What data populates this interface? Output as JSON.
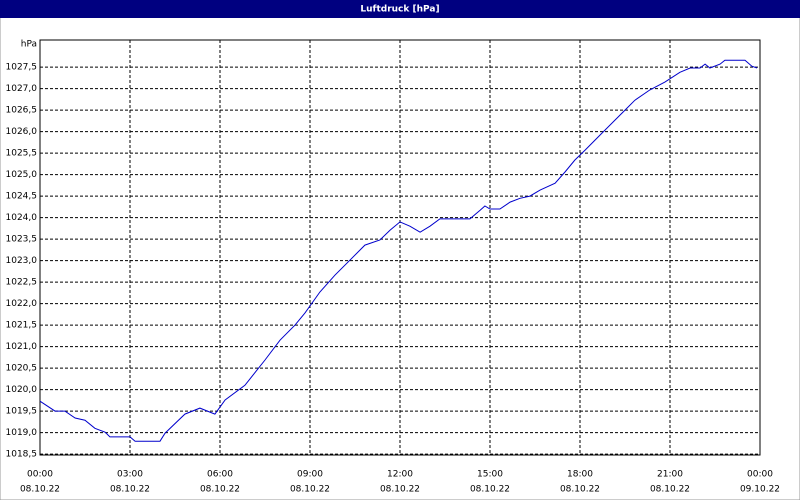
{
  "chart_data": {
    "type": "line",
    "title": "Luftdruck [hPa]",
    "y_unit": "hPa",
    "x": [
      0,
      0.5,
      0.83,
      1.17,
      1.5,
      1.83,
      2.17,
      2.33,
      3,
      3.17,
      4,
      4.17,
      4.83,
      5.33,
      5.83,
      6.17,
      6.83,
      7.5,
      8,
      8.5,
      8.83,
      9.33,
      9.83,
      10.33,
      10.83,
      11.33,
      11.67,
      12,
      12.33,
      12.67,
      13,
      13.33,
      14.33,
      14.67,
      14.83,
      15,
      15.33,
      15.67,
      16,
      16.33,
      16.67,
      17.17,
      17.5,
      17.83,
      18.17,
      18.67,
      19.17,
      19.5,
      19.83,
      20.33,
      20.83,
      21.33,
      21.67,
      22,
      22.17,
      22.33,
      22.67,
      22.83,
      23.5,
      23.73,
      23.9
    ],
    "series": [
      {
        "name": "Luftdruck",
        "color": "#0000cc",
        "values": [
          1019.73,
          1019.5,
          1019.5,
          1019.34,
          1019.29,
          1019.1,
          1019.01,
          1018.9,
          1018.9,
          1018.8,
          1018.8,
          1018.99,
          1019.43,
          1019.57,
          1019.43,
          1019.76,
          1020.1,
          1020.69,
          1021.15,
          1021.5,
          1021.78,
          1022.27,
          1022.66,
          1023.01,
          1023.36,
          1023.48,
          1023.71,
          1023.9,
          1023.8,
          1023.66,
          1023.8,
          1023.97,
          1023.97,
          1024.17,
          1024.27,
          1024.2,
          1024.2,
          1024.36,
          1024.45,
          1024.5,
          1024.64,
          1024.8,
          1025.06,
          1025.34,
          1025.57,
          1025.92,
          1026.27,
          1026.5,
          1026.73,
          1026.97,
          1027.15,
          1027.38,
          1027.48,
          1027.48,
          1027.57,
          1027.48,
          1027.57,
          1027.66,
          1027.66,
          1027.52,
          1027.48
        ]
      }
    ],
    "xlim": [
      0,
      24
    ],
    "xticks": [
      {
        "value": 0,
        "label": "00:00"
      },
      {
        "value": 3,
        "label": "03:00"
      },
      {
        "value": 6,
        "label": "06:00"
      },
      {
        "value": 9,
        "label": "09:00"
      },
      {
        "value": 12,
        "label": "12:00"
      },
      {
        "value": 15,
        "label": "15:00"
      },
      {
        "value": 18,
        "label": "18:00"
      },
      {
        "value": 21,
        "label": "21:00"
      },
      {
        "value": 24,
        "label": "00:00"
      }
    ],
    "xtick_dates": [
      "08.10.22",
      "08.10.22",
      "08.10.22",
      "08.10.22",
      "08.10.22",
      "08.10.22",
      "08.10.22",
      "08.10.22",
      "09.10.22"
    ],
    "ylim": [
      1018.48,
      1028.13
    ],
    "yticks": [
      {
        "value": 1018.5,
        "label": "1018,5"
      },
      {
        "value": 1019,
        "label": "1019,0"
      },
      {
        "value": 1019.5,
        "label": "1019,5"
      },
      {
        "value": 1020,
        "label": "1020,0"
      },
      {
        "value": 1020.5,
        "label": "1020,5"
      },
      {
        "value": 1021,
        "label": "1021,0"
      },
      {
        "value": 1021.5,
        "label": "1021,5"
      },
      {
        "value": 1022,
        "label": "1022,0"
      },
      {
        "value": 1022.5,
        "label": "1022,5"
      },
      {
        "value": 1023,
        "label": "1023,0"
      },
      {
        "value": 1023.5,
        "label": "1023,5"
      },
      {
        "value": 1024,
        "label": "1024,0"
      },
      {
        "value": 1024.5,
        "label": "1024,5"
      },
      {
        "value": 1025,
        "label": "1025,0"
      },
      {
        "value": 1025.5,
        "label": "1025,5"
      },
      {
        "value": 1026,
        "label": "1026,0"
      },
      {
        "value": 1026.5,
        "label": "1026,5"
      },
      {
        "value": 1027,
        "label": "1027,0"
      },
      {
        "value": 1027.5,
        "label": "1027,5"
      }
    ],
    "grid": true
  }
}
